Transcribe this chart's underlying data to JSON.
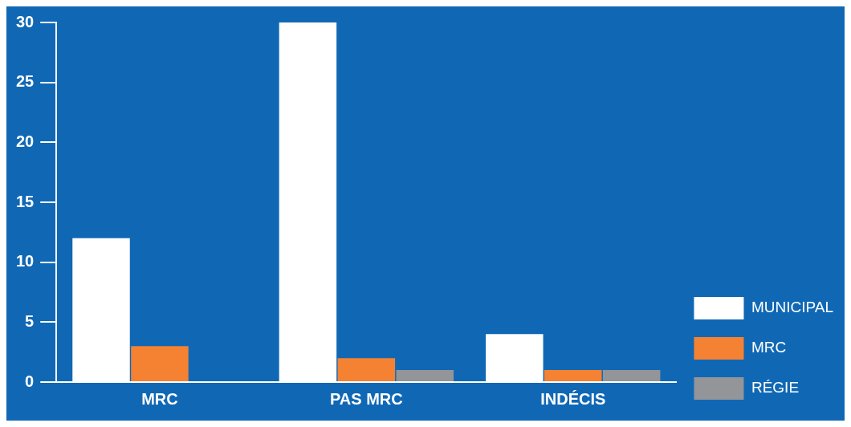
{
  "chart_data": {
    "type": "bar",
    "categories": [
      "MRC",
      "PAS MRC",
      "INDÉCIS"
    ],
    "series": [
      {
        "name": "MUNICIPAL",
        "color": "#ffffff",
        "values": [
          12,
          30,
          4
        ]
      },
      {
        "name": "MRC",
        "color": "#f58232",
        "values": [
          3,
          2,
          1
        ]
      },
      {
        "name": "RÉGIE",
        "color": "#939598",
        "values": [
          0,
          1,
          1
        ]
      }
    ],
    "ylim": [
      0,
      30
    ],
    "yticks": [
      0,
      5,
      10,
      15,
      20,
      25,
      30
    ],
    "grid": false,
    "legend": "bottom right"
  }
}
